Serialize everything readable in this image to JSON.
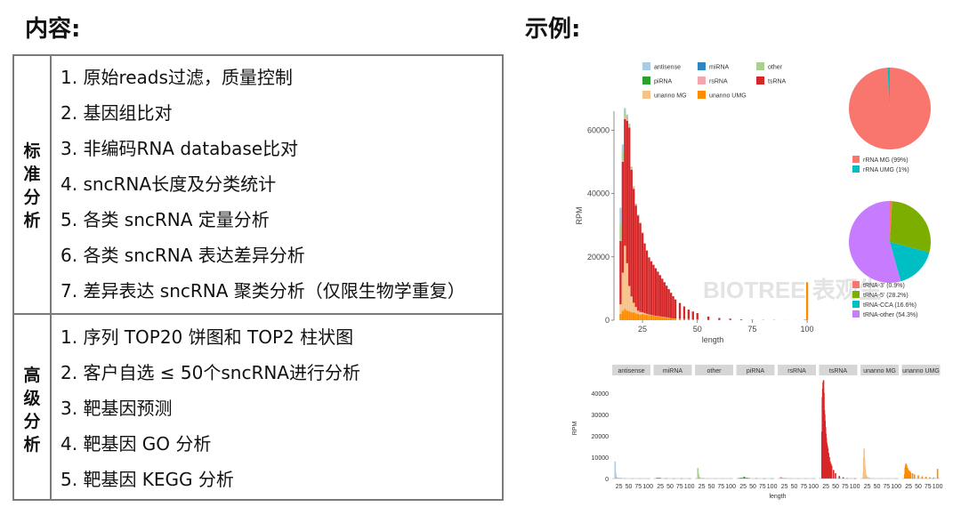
{
  "headings": {
    "left": "内容:",
    "right": "示例:"
  },
  "table": {
    "standard": {
      "category": [
        "标",
        "准",
        "分",
        "析"
      ],
      "items": [
        "1.  原始reads过滤，质量控制",
        "2.  基因组比对",
        "3.  非编码RNA database比对",
        "4.  sncRNA长度及分类统计",
        "5.  各类 sncRNA 定量分析",
        "6.  各类 sncRNA 表达差异分析",
        "7.  差异表达 sncRNA 聚类分析（仅限生物学重复）"
      ]
    },
    "advanced": {
      "category": [
        "高",
        "级",
        "分",
        "析"
      ],
      "items": [
        "1. 序列 TOP20 饼图和 TOP2 柱状图",
        "2. 客户自选 ≤ 50个sncRNA进行分析",
        "3. 靶基因预测",
        "4. 靶基因 GO 分析",
        "5. 靶基因 KEGG 分析"
      ]
    }
  },
  "colors": {
    "antisense": "#a9cce3",
    "miRNA": "#2e86c1",
    "other": "#a9d18e",
    "piRNA": "#2ca02c",
    "rsRNA": "#f4a6b0",
    "tsRNA": "#d62728",
    "unanno_MG": "#f5c28a",
    "unanno_UMG": "#ff8c00",
    "rRNA_MG": "#f8766d",
    "rRNA_UMG": "#00bfc4",
    "tRNA3": "#f8766d",
    "tRNA5": "#7cae00",
    "tRNACCA": "#00bfc4",
    "tRNAother": "#c77cff"
  },
  "chart_data": [
    {
      "type": "bar",
      "title": "",
      "xlabel": "length",
      "ylabel": "RPM",
      "xlim": [
        12,
        102
      ],
      "ylim": [
        0,
        66000
      ],
      "x_ticks": [
        25,
        50,
        75,
        100
      ],
      "y_ticks": [
        0,
        20000,
        40000,
        60000
      ],
      "legend": [
        "antisense",
        "miRNA",
        "other",
        "piRNA",
        "rsRNA",
        "tsRNA",
        "unanno MG",
        "unanno UMG"
      ],
      "legend_keys": [
        "antisense",
        "miRNA",
        "other",
        "piRNA",
        "rsRNA",
        "tsRNA",
        "unanno_MG",
        "unanno_UMG"
      ],
      "x": [
        15,
        16,
        17,
        18,
        19,
        20,
        21,
        22,
        23,
        24,
        25,
        26,
        27,
        28,
        29,
        30,
        31,
        32,
        33,
        34,
        35,
        36,
        37,
        38,
        39,
        40,
        42,
        44,
        46,
        48,
        50,
        55,
        60,
        65,
        70,
        75,
        80,
        85,
        90,
        95,
        99,
        100
      ],
      "series": [
        {
          "key": "unanno_UMG",
          "values": [
            2000,
            3000,
            3500,
            3000,
            2800,
            2500,
            2500,
            2200,
            2000,
            1800,
            2000,
            1800,
            1700,
            1600,
            1500,
            1400,
            1300,
            1200,
            1100,
            1000,
            900,
            800,
            700,
            600,
            500,
            500,
            400,
            300,
            300,
            200,
            200,
            150,
            100,
            100,
            80,
            60,
            50,
            40,
            30,
            30,
            200,
            12000
          ]
        },
        {
          "key": "unanno_MG",
          "values": [
            3000,
            12000,
            20000,
            15000,
            8000,
            5000,
            3000,
            2000,
            1000,
            800,
            500,
            400,
            300,
            200,
            100,
            100,
            100,
            100,
            100,
            100,
            100,
            100,
            100,
            50,
            50,
            50,
            50,
            50,
            50,
            50,
            50,
            0,
            0,
            0,
            0,
            0,
            0,
            0,
            0,
            0,
            0,
            0
          ]
        },
        {
          "key": "tsRNA",
          "values": [
            20000,
            35000,
            40000,
            45000,
            50000,
            40000,
            36000,
            32000,
            30000,
            28000,
            25000,
            22000,
            20000,
            18000,
            17000,
            16000,
            15000,
            14000,
            13000,
            12000,
            11000,
            10000,
            9000,
            8000,
            7000,
            6000,
            5000,
            4000,
            3000,
            2500,
            2000,
            1000,
            600,
            400,
            200,
            100,
            50,
            50,
            0,
            0,
            0,
            0
          ]
        },
        {
          "key": "rsRNA",
          "values": [
            500,
            500,
            500,
            400,
            400,
            300,
            300,
            300,
            200,
            200,
            200,
            200,
            100,
            100,
            100,
            100,
            100,
            100,
            100,
            100,
            100,
            0,
            0,
            0,
            0,
            0,
            0,
            0,
            0,
            0,
            0,
            0,
            0,
            0,
            0,
            0,
            0,
            0,
            0,
            0,
            0,
            0
          ]
        },
        {
          "key": "piRNA",
          "values": [
            0,
            0,
            0,
            0,
            0,
            0,
            0,
            0,
            0,
            0,
            0,
            0,
            0,
            0,
            0,
            0,
            0,
            0,
            0,
            0,
            0,
            0,
            0,
            0,
            0,
            0,
            0,
            0,
            0,
            0,
            0,
            0,
            0,
            0,
            0,
            0,
            0,
            0,
            0,
            0,
            0,
            0
          ]
        },
        {
          "key": "other",
          "values": [
            5000,
            3000,
            2000,
            1000,
            600,
            500,
            400,
            300,
            200,
            100,
            100,
            0,
            0,
            0,
            0,
            0,
            0,
            0,
            0,
            0,
            0,
            0,
            0,
            0,
            0,
            0,
            0,
            0,
            0,
            0,
            0,
            0,
            0,
            0,
            0,
            0,
            0,
            0,
            0,
            0,
            0,
            0
          ]
        },
        {
          "key": "miRNA",
          "values": [
            0,
            0,
            0,
            0,
            0,
            0,
            0,
            0,
            0,
            0,
            0,
            0,
            0,
            0,
            0,
            0,
            0,
            0,
            0,
            0,
            0,
            0,
            0,
            0,
            0,
            0,
            0,
            0,
            0,
            0,
            0,
            0,
            0,
            0,
            0,
            0,
            0,
            0,
            0,
            0,
            0,
            0
          ]
        },
        {
          "key": "antisense",
          "values": [
            5000,
            2000,
            1000,
            500,
            300,
            200,
            100,
            0,
            0,
            0,
            0,
            0,
            0,
            0,
            0,
            0,
            0,
            0,
            0,
            0,
            0,
            0,
            0,
            0,
            0,
            0,
            0,
            0,
            0,
            0,
            0,
            0,
            0,
            0,
            0,
            0,
            0,
            0,
            0,
            0,
            0,
            0
          ]
        }
      ]
    },
    {
      "type": "pie",
      "labels": [
        "rRNA MG (99%)",
        "rRNA UMG (1%)"
      ],
      "keys": [
        "rRNA_MG",
        "rRNA_UMG"
      ],
      "values": [
        99,
        1
      ]
    },
    {
      "type": "pie",
      "labels": [
        "tRNA-3' (0.9%)",
        "tRNA-5' (28.2%)",
        "tRNA-CCA (16.6%)",
        "tRNA-other (54.3%)"
      ],
      "keys": [
        "tRNA3",
        "tRNA5",
        "tRNACCA",
        "tRNAother"
      ],
      "values": [
        0.9,
        28.2,
        16.6,
        54.3
      ]
    },
    {
      "type": "bar",
      "xlabel": "length",
      "ylabel": "RPM",
      "ylim": [
        0,
        47000
      ],
      "y_ticks": [
        0,
        10000,
        20000,
        30000,
        40000
      ],
      "x_ticks": [
        25,
        50,
        75,
        100
      ],
      "panels": [
        {
          "name": "antisense",
          "key": "antisense",
          "x": [
            15,
            16,
            17,
            18,
            20,
            25,
            30,
            40,
            60,
            80,
            100
          ],
          "values": [
            8000,
            3000,
            1500,
            800,
            500,
            400,
            300,
            200,
            100,
            100,
            100
          ]
        },
        {
          "name": "miRNA",
          "key": "miRNA",
          "x": [
            15,
            18,
            20,
            22,
            25,
            40,
            60,
            80,
            100
          ],
          "values": [
            300,
            300,
            300,
            300,
            300,
            200,
            100,
            100,
            100
          ]
        },
        {
          "name": "other",
          "key": "other",
          "x": [
            15,
            16,
            17,
            18,
            20,
            25,
            30,
            40,
            60,
            80,
            100
          ],
          "values": [
            5000,
            2500,
            1500,
            900,
            500,
            300,
            200,
            100,
            100,
            100,
            100
          ]
        },
        {
          "name": "piRNA",
          "key": "piRNA",
          "x": [
            15,
            20,
            25,
            28,
            30,
            35,
            40,
            60,
            80,
            100
          ],
          "values": [
            300,
            400,
            500,
            900,
            500,
            400,
            300,
            200,
            100,
            100
          ]
        },
        {
          "name": "rsRNA",
          "key": "rsRNA",
          "x": [
            15,
            16,
            18,
            20,
            25,
            30,
            40,
            60,
            80,
            100
          ],
          "values": [
            900,
            700,
            500,
            400,
            300,
            200,
            200,
            100,
            100,
            100
          ]
        },
        {
          "name": "tsRNA",
          "key": "tsRNA",
          "x": [
            15,
            16,
            17,
            18,
            19,
            20,
            21,
            22,
            23,
            24,
            25,
            26,
            27,
            28,
            29,
            30,
            32,
            34,
            36,
            38,
            40,
            45,
            50,
            60,
            70,
            80,
            100
          ],
          "values": [
            22000,
            38000,
            42000,
            45000,
            46000,
            40000,
            32000,
            30000,
            27000,
            24000,
            21000,
            19000,
            17000,
            16000,
            15000,
            14000,
            12000,
            10000,
            8000,
            7000,
            6000,
            4000,
            2500,
            1200,
            600,
            200,
            100
          ]
        },
        {
          "name": "unanno MG",
          "key": "unanno_MG",
          "x": [
            15,
            16,
            17,
            18,
            19,
            20,
            22,
            25,
            30,
            40,
            60,
            80,
            100
          ],
          "values": [
            3000,
            10000,
            14000,
            9000,
            6000,
            4000,
            2000,
            1000,
            500,
            200,
            100,
            100,
            100
          ]
        },
        {
          "name": "unanno UMG",
          "key": "unanno_UMG",
          "x": [
            15,
            16,
            17,
            18,
            19,
            20,
            22,
            25,
            28,
            30,
            35,
            40,
            50,
            60,
            70,
            80,
            90,
            100
          ],
          "values": [
            2000,
            5000,
            6000,
            7000,
            6500,
            6000,
            5000,
            4000,
            3500,
            3000,
            2500,
            2000,
            1500,
            1000,
            800,
            600,
            500,
            4500
          ]
        }
      ]
    }
  ],
  "watermark": "BIOTREE 表观生"
}
